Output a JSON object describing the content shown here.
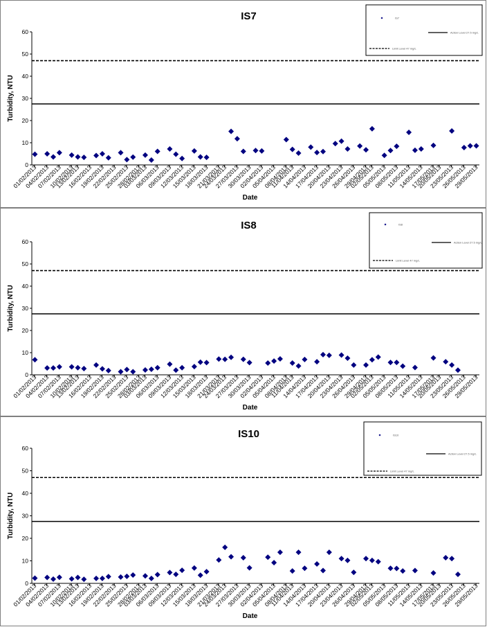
{
  "chart_data": [
    {
      "type": "scatter",
      "title": "IS7",
      "xlabel": "Date",
      "ylabel": "Turbidity, NTU",
      "ylim": [
        0,
        60
      ],
      "yticks": [
        "0",
        "10",
        "20",
        "30",
        "40",
        "50",
        "60"
      ],
      "x_tick_labels": [
        "01/02/2013",
        "04/02/2013",
        "07/02/2013",
        "10/02/2013",
        "13/02/2013",
        "16/02/2013",
        "19/02/2013",
        "22/02/2013",
        "25/02/2013",
        "28/02/2013",
        "03/03/2013",
        "06/03/2013",
        "09/03/2013",
        "12/03/2013",
        "15/03/2013",
        "18/03/2013",
        "21/03/2013",
        "24/03/2013",
        "27/03/2013",
        "30/03/2013",
        "02/04/2013",
        "05/04/2013",
        "08/04/2013",
        "11/04/2013",
        "14/04/2013",
        "17/04/2013",
        "20/04/2013",
        "23/04/2013",
        "26/04/2013",
        "29/04/2013",
        "02/05/2013",
        "05/05/2013",
        "08/05/2013",
        "11/05/2013",
        "14/05/2013",
        "17/05/2013",
        "20/05/2013",
        "23/05/2013",
        "26/05/2013",
        "29/05/2013"
      ],
      "reference_lines": [
        27.5,
        47
      ],
      "legend": {
        "position": "top-right",
        "entries": [
          "IS7",
          "Action Level 27.5 mg/L",
          "Limit Level 47 mg/L"
        ]
      },
      "series": [
        {
          "name": "IS7",
          "color": "#000080",
          "points": [
            [
              0,
              4.8
            ],
            [
              2,
              5.0
            ],
            [
              3,
              3.6
            ],
            [
              4,
              5.5
            ],
            [
              6,
              4.4
            ],
            [
              7,
              3.6
            ],
            [
              8,
              3.4
            ],
            [
              10,
              4.2
            ],
            [
              11,
              5.0
            ],
            [
              12,
              3.2
            ],
            [
              14,
              5.5
            ],
            [
              15,
              2.4
            ],
            [
              16,
              3.5
            ],
            [
              18,
              4.4
            ],
            [
              19,
              2.2
            ],
            [
              20,
              6.1
            ],
            [
              22,
              7.2
            ],
            [
              23,
              4.8
            ],
            [
              24,
              2.9
            ],
            [
              26,
              6.3
            ],
            [
              27,
              3.6
            ],
            [
              28,
              3.4
            ],
            [
              32,
              15.1
            ],
            [
              33,
              11.8
            ],
            [
              34,
              6.1
            ],
            [
              36,
              6.5
            ],
            [
              37,
              6.3
            ],
            [
              41,
              11.4
            ],
            [
              42,
              7.0
            ],
            [
              43,
              5.3
            ],
            [
              45,
              8.0
            ],
            [
              46,
              5.6
            ],
            [
              47,
              6.0
            ],
            [
              49,
              9.6
            ],
            [
              50,
              10.7
            ],
            [
              51,
              7.2
            ],
            [
              53,
              8.5
            ],
            [
              54,
              6.8
            ],
            [
              55,
              16.3
            ],
            [
              57,
              4.3
            ],
            [
              58,
              6.5
            ],
            [
              59,
              8.4
            ],
            [
              61,
              14.7
            ],
            [
              62,
              6.6
            ],
            [
              63,
              7.2
            ],
            [
              65,
              8.8
            ],
            [
              68,
              15.3
            ],
            [
              70,
              7.8
            ],
            [
              71,
              8.6
            ],
            [
              72,
              8.6
            ]
          ]
        }
      ]
    },
    {
      "type": "scatter",
      "title": "IS8",
      "xlabel": "Date",
      "ylabel": "Turbidity, NTU",
      "ylim": [
        0,
        60
      ],
      "yticks": [
        "0",
        "10",
        "20",
        "30",
        "40",
        "50",
        "60"
      ],
      "x_tick_labels": [
        "01/02/2013",
        "04/02/2013",
        "07/02/2013",
        "10/02/2013",
        "13/02/2013",
        "16/02/2013",
        "19/02/2013",
        "22/02/2013",
        "25/02/2013",
        "28/02/2013",
        "03/03/2013",
        "06/03/2013",
        "09/03/2013",
        "12/03/2013",
        "15/03/2013",
        "18/03/2013",
        "21/03/2013",
        "24/03/2013",
        "27/03/2013",
        "30/03/2013",
        "02/04/2013",
        "05/04/2013",
        "08/04/2013",
        "11/04/2013",
        "14/04/2013",
        "17/04/2013",
        "20/04/2013",
        "23/04/2013",
        "26/04/2013",
        "29/04/2013",
        "02/05/2013",
        "05/05/2013",
        "08/05/2013",
        "11/05/2013",
        "14/05/2013",
        "17/05/2013",
        "20/05/2013",
        "23/05/2013",
        "26/05/2013",
        "29/05/2013"
      ],
      "reference_lines": [
        27.5,
        47
      ],
      "legend": {
        "position": "top-right",
        "entries": [
          "IS8",
          "Action Level 27.5 mg/L",
          "Limit Level 47 mg/L"
        ]
      },
      "series": [
        {
          "name": "IS8",
          "color": "#000080",
          "points": [
            [
              0,
              6.8
            ],
            [
              2,
              3.1
            ],
            [
              3,
              3.1
            ],
            [
              4,
              3.6
            ],
            [
              6,
              3.6
            ],
            [
              7,
              3.2
            ],
            [
              8,
              2.8
            ],
            [
              10,
              4.4
            ],
            [
              11,
              2.7
            ],
            [
              12,
              1.9
            ],
            [
              14,
              1.4
            ],
            [
              15,
              2.4
            ],
            [
              16,
              1.4
            ],
            [
              18,
              2.2
            ],
            [
              19,
              2.5
            ],
            [
              20,
              3.2
            ],
            [
              22,
              4.8
            ],
            [
              23,
              2.1
            ],
            [
              24,
              3.2
            ],
            [
              26,
              3.7
            ],
            [
              27,
              5.7
            ],
            [
              28,
              5.5
            ],
            [
              30,
              7.1
            ],
            [
              31,
              7.0
            ],
            [
              32,
              7.9
            ],
            [
              34,
              7.0
            ],
            [
              35,
              5.5
            ],
            [
              38,
              5.3
            ],
            [
              39,
              6.2
            ],
            [
              40,
              7.2
            ],
            [
              42,
              5.3
            ],
            [
              43,
              4.0
            ],
            [
              44,
              6.9
            ],
            [
              46,
              5.9
            ],
            [
              47,
              9.1
            ],
            [
              48,
              8.8
            ],
            [
              50,
              8.9
            ],
            [
              51,
              7.5
            ],
            [
              52,
              4.4
            ],
            [
              54,
              4.4
            ],
            [
              55,
              6.8
            ],
            [
              56,
              8.0
            ],
            [
              58,
              5.6
            ],
            [
              59,
              5.6
            ],
            [
              60,
              3.9
            ],
            [
              62,
              3.3
            ],
            [
              65,
              7.6
            ],
            [
              67,
              5.9
            ],
            [
              68,
              4.4
            ],
            [
              69,
              2.1
            ]
          ]
        }
      ]
    },
    {
      "type": "scatter",
      "title": "IS10",
      "xlabel": "Date",
      "ylabel": "Turbidity, NTU",
      "ylim": [
        0,
        60
      ],
      "yticks": [
        "0",
        "10",
        "20",
        "30",
        "40",
        "50",
        "60"
      ],
      "x_tick_labels": [
        "01/02/2013",
        "04/02/2013",
        "07/02/2013",
        "10/02/2013",
        "13/02/2013",
        "16/02/2013",
        "19/02/2013",
        "22/02/2013",
        "25/02/2013",
        "28/02/2013",
        "03/03/2013",
        "06/03/2013",
        "09/03/2013",
        "12/03/2013",
        "15/03/2013",
        "18/03/2013",
        "21/03/2013",
        "24/03/2013",
        "27/03/2013",
        "30/03/2013",
        "02/04/2013",
        "05/04/2013",
        "08/04/2013",
        "11/04/2013",
        "14/04/2013",
        "17/04/2013",
        "20/04/2013",
        "23/04/2013",
        "26/04/2013",
        "29/04/2013",
        "02/05/2013",
        "05/05/2013",
        "08/05/2013",
        "11/05/2013",
        "14/05/2013",
        "17/05/2013",
        "20/05/2013",
        "23/05/2013",
        "26/05/2013",
        "29/05/2013"
      ],
      "reference_lines": [
        27.5,
        47
      ],
      "legend": {
        "position": "top-right",
        "entries": [
          "IS10",
          "Action Level 27.5 mg/L",
          "Limit Level 47 mg/L"
        ]
      },
      "series": [
        {
          "name": "IS10",
          "color": "#000080",
          "points": [
            [
              0,
              2.3
            ],
            [
              2,
              2.6
            ],
            [
              3,
              1.9
            ],
            [
              4,
              2.7
            ],
            [
              6,
              2.0
            ],
            [
              7,
              2.6
            ],
            [
              8,
              1.8
            ],
            [
              10,
              2.2
            ],
            [
              11,
              2.2
            ],
            [
              12,
              3.0
            ],
            [
              14,
              2.8
            ],
            [
              15,
              3.1
            ],
            [
              16,
              3.7
            ],
            [
              18,
              3.3
            ],
            [
              19,
              2.2
            ],
            [
              20,
              3.9
            ],
            [
              22,
              4.8
            ],
            [
              23,
              4.0
            ],
            [
              24,
              5.8
            ],
            [
              26,
              6.8
            ],
            [
              27,
              3.6
            ],
            [
              28,
              5.2
            ],
            [
              30,
              10.4
            ],
            [
              31,
              16.0
            ],
            [
              32,
              11.8
            ],
            [
              34,
              11.4
            ],
            [
              35,
              6.9
            ],
            [
              38,
              11.6
            ],
            [
              39,
              9.2
            ],
            [
              40,
              13.8
            ],
            [
              42,
              5.5
            ],
            [
              43,
              13.8
            ],
            [
              44,
              6.7
            ],
            [
              46,
              8.6
            ],
            [
              47,
              5.7
            ],
            [
              48,
              13.8
            ],
            [
              50,
              11.0
            ],
            [
              51,
              10.2
            ],
            [
              52,
              4.9
            ],
            [
              54,
              11.0
            ],
            [
              55,
              10.2
            ],
            [
              56,
              9.6
            ],
            [
              58,
              6.7
            ],
            [
              59,
              6.6
            ],
            [
              60,
              5.5
            ],
            [
              62,
              5.7
            ],
            [
              65,
              4.6
            ],
            [
              67,
              11.4
            ],
            [
              68,
              11.0
            ],
            [
              69,
              4.0
            ]
          ]
        }
      ]
    }
  ]
}
